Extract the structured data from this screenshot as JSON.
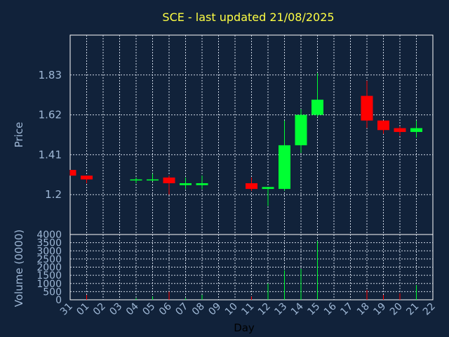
{
  "chart_data": {
    "type": "candlestick",
    "title": "SCE - last updated 21/08/2025",
    "xlabel": "Day",
    "ylabel": "Price",
    "volume_label": "Volume (0000)",
    "x_ticks": [
      "31",
      "01",
      "02",
      "03",
      "04",
      "05",
      "06",
      "07",
      "08",
      "09",
      "10",
      "11",
      "12",
      "13",
      "14",
      "15",
      "16",
      "17",
      "18",
      "19",
      "20",
      "21",
      "22"
    ],
    "price_ticks": [
      1.2,
      1.41,
      1.62,
      1.83
    ],
    "price_tick_labels": [
      "1.2",
      "1.41",
      "1.62",
      "1.83"
    ],
    "price_range": [
      0.99,
      2.04
    ],
    "volume_ticks": [
      0,
      500,
      1000,
      1500,
      2000,
      2500,
      3000,
      3500,
      4000
    ],
    "volume_range": [
      0,
      4000
    ],
    "grid": true,
    "up_color": "#00ff33",
    "down_color": "#ff0000",
    "candles": [
      {
        "day": "31",
        "open": 1.33,
        "high": 1.33,
        "low": 1.3,
        "close": 1.3,
        "volume": 0
      },
      {
        "day": "01",
        "open": 1.3,
        "high": 1.3,
        "low": 1.26,
        "close": 1.28,
        "volume": 300
      },
      {
        "day": "04",
        "open": 1.28,
        "high": 1.29,
        "low": 1.26,
        "close": 1.28,
        "volume": 100
      },
      {
        "day": "05",
        "open": 1.28,
        "high": 1.31,
        "low": 1.27,
        "close": 1.28,
        "volume": 200
      },
      {
        "day": "06",
        "open": 1.29,
        "high": 1.3,
        "low": 1.2,
        "close": 1.26,
        "volume": 500
      },
      {
        "day": "07",
        "open": 1.25,
        "high": 1.29,
        "low": 1.23,
        "close": 1.26,
        "volume": 100
      },
      {
        "day": "08",
        "open": 1.25,
        "high": 1.3,
        "low": 1.23,
        "close": 1.26,
        "volume": 300
      },
      {
        "day": "11",
        "open": 1.26,
        "high": 1.29,
        "low": 1.22,
        "close": 1.23,
        "volume": 200
      },
      {
        "day": "12",
        "open": 1.23,
        "high": 1.24,
        "low": 1.14,
        "close": 1.24,
        "volume": 1000
      },
      {
        "day": "13",
        "open": 1.23,
        "high": 1.59,
        "low": 1.22,
        "close": 1.46,
        "volume": 1800
      },
      {
        "day": "14",
        "open": 1.46,
        "high": 1.65,
        "low": 1.42,
        "close": 1.62,
        "volume": 1900
      },
      {
        "day": "15",
        "open": 1.62,
        "high": 1.84,
        "low": 1.61,
        "close": 1.7,
        "volume": 3600
      },
      {
        "day": "18",
        "open": 1.72,
        "high": 1.8,
        "low": 1.55,
        "close": 1.59,
        "volume": 600
      },
      {
        "day": "19",
        "open": 1.59,
        "high": 1.59,
        "low": 1.52,
        "close": 1.54,
        "volume": 300
      },
      {
        "day": "20",
        "open": 1.55,
        "high": 1.56,
        "low": 1.51,
        "close": 1.53,
        "volume": 400
      },
      {
        "day": "21",
        "open": 1.53,
        "high": 1.59,
        "low": 1.5,
        "close": 1.55,
        "volume": 900
      }
    ]
  }
}
